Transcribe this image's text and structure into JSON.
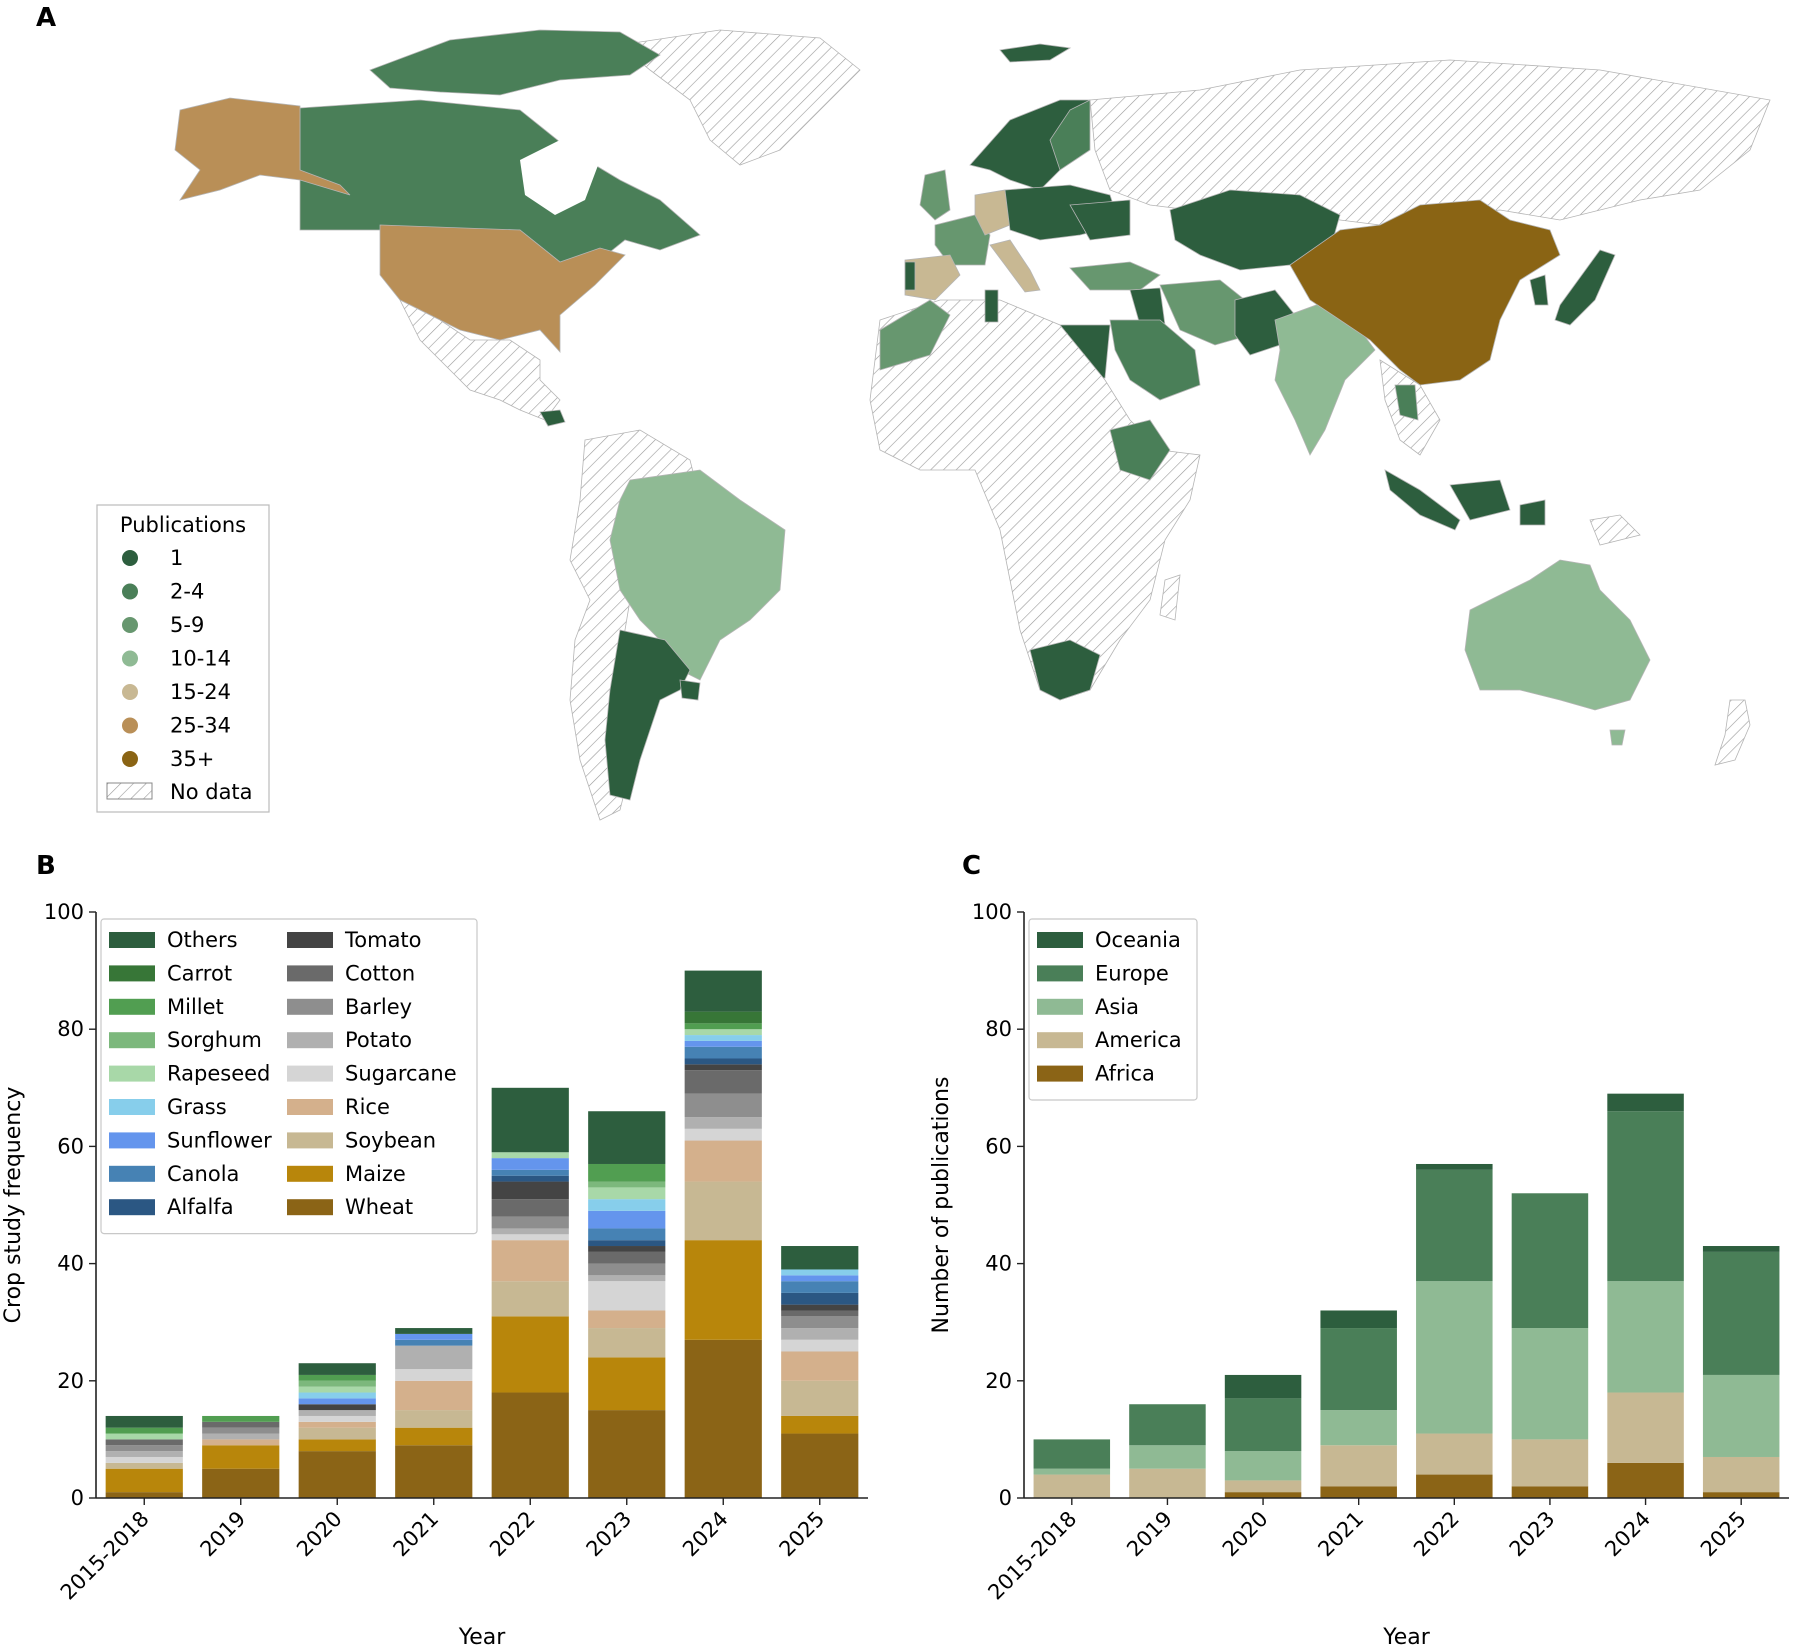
{
  "panels": {
    "a_label": "A",
    "b_label": "B",
    "c_label": "C"
  },
  "map": {
    "legend_title": "Publications",
    "legend": [
      {
        "label": "1",
        "color": "#2d5e3e"
      },
      {
        "label": "2-4",
        "color": "#4a7f58"
      },
      {
        "label": "5-9",
        "color": "#67976f"
      },
      {
        "label": "10-14",
        "color": "#8fba94"
      },
      {
        "label": "15-24",
        "color": "#c8b893"
      },
      {
        "label": "25-34",
        "color": "#b98f57"
      },
      {
        "label": "35+",
        "color": "#8a6414"
      }
    ],
    "no_data_label": "No data"
  },
  "chart_data": [
    {
      "type": "bar",
      "stacked": true,
      "xlabel": "Year",
      "ylabel": "Crop study frequency",
      "ylim": [
        0,
        100
      ],
      "yticks": [
        0,
        20,
        40,
        60,
        80,
        100
      ],
      "categories": [
        "2015-2018",
        "2019",
        "2020",
        "2021",
        "2022",
        "2023",
        "2024",
        "2025"
      ],
      "legend_placement": "top-left",
      "series": [
        {
          "name": "Wheat",
          "color": "#8b6416",
          "values": [
            1,
            5,
            8,
            9,
            18,
            15,
            27,
            11
          ]
        },
        {
          "name": "Maize",
          "color": "#b8860b",
          "values": [
            4,
            4,
            2,
            3,
            13,
            9,
            17,
            3
          ]
        },
        {
          "name": "Soybean",
          "color": "#c7b893",
          "values": [
            1,
            0,
            2,
            3,
            6,
            5,
            10,
            6
          ]
        },
        {
          "name": "Rice",
          "color": "#d4b08c",
          "values": [
            0,
            1,
            1,
            5,
            7,
            3,
            7,
            5
          ]
        },
        {
          "name": "Sugarcane",
          "color": "#d5d5d5",
          "values": [
            1,
            0,
            1,
            2,
            1,
            5,
            2,
            2
          ]
        },
        {
          "name": "Potato",
          "color": "#b0b0b0",
          "values": [
            1,
            1,
            1,
            4,
            1,
            1,
            2,
            2
          ]
        },
        {
          "name": "Barley",
          "color": "#8e8e8e",
          "values": [
            1,
            1,
            0,
            0,
            2,
            2,
            4,
            2
          ]
        },
        {
          "name": "Cotton",
          "color": "#6a6a6a",
          "values": [
            1,
            1,
            0,
            0,
            3,
            2,
            4,
            1
          ]
        },
        {
          "name": "Tomato",
          "color": "#444444",
          "values": [
            0,
            0,
            1,
            0,
            3,
            1,
            1,
            1
          ]
        },
        {
          "name": "Alfalfa",
          "color": "#2b5783",
          "values": [
            0,
            0,
            0,
            0,
            1,
            1,
            1,
            2
          ]
        },
        {
          "name": "Canola",
          "color": "#4682b4",
          "values": [
            0,
            0,
            0,
            1,
            1,
            2,
            2,
            2
          ]
        },
        {
          "name": "Sunflower",
          "color": "#6495ed",
          "values": [
            0,
            0,
            1,
            1,
            2,
            3,
            1,
            1
          ]
        },
        {
          "name": "Grass",
          "color": "#87ceeb",
          "values": [
            0,
            0,
            1,
            0,
            0,
            2,
            1,
            1
          ]
        },
        {
          "name": "Rapeseed",
          "color": "#a8d8a8",
          "values": [
            1,
            0,
            1,
            0,
            1,
            2,
            1,
            0
          ]
        },
        {
          "name": "Sorghum",
          "color": "#7cb87c",
          "values": [
            0,
            0,
            1,
            0,
            0,
            1,
            0,
            0
          ]
        },
        {
          "name": "Millet",
          "color": "#519e51",
          "values": [
            1,
            1,
            1,
            0,
            0,
            3,
            1,
            0
          ]
        },
        {
          "name": "Carrot",
          "color": "#377637",
          "values": [
            0,
            0,
            0,
            0,
            0,
            0,
            2,
            0
          ]
        },
        {
          "name": "Others",
          "color": "#2d5e3e",
          "values": [
            2,
            0,
            2,
            1,
            11,
            9,
            7,
            4
          ]
        }
      ],
      "legend_columns": [
        [
          "Others",
          "Carrot",
          "Millet",
          "Sorghum",
          "Rapeseed",
          "Grass",
          "Sunflower",
          "Canola",
          "Alfalfa"
        ],
        [
          "Tomato",
          "Cotton",
          "Barley",
          "Potato",
          "Sugarcane",
          "Rice",
          "Soybean",
          "Maize",
          "Wheat"
        ]
      ]
    },
    {
      "type": "bar",
      "stacked": true,
      "xlabel": "Year",
      "ylabel": "Number of publications",
      "ylim": [
        0,
        100
      ],
      "yticks": [
        0,
        20,
        40,
        60,
        80,
        100
      ],
      "categories": [
        "2015-2018",
        "2019",
        "2020",
        "2021",
        "2022",
        "2023",
        "2024",
        "2025"
      ],
      "legend_placement": "top-left",
      "series": [
        {
          "name": "Africa",
          "color": "#8b6416",
          "values": [
            0,
            0,
            1,
            2,
            4,
            2,
            6,
            1
          ]
        },
        {
          "name": "America",
          "color": "#c7b893",
          "values": [
            4,
            5,
            2,
            7,
            7,
            8,
            12,
            6
          ]
        },
        {
          "name": "Asia",
          "color": "#8fba94",
          "values": [
            1,
            4,
            5,
            6,
            26,
            19,
            19,
            14
          ]
        },
        {
          "name": "Europe",
          "color": "#4a7f58",
          "values": [
            5,
            7,
            9,
            14,
            19,
            23,
            29,
            21
          ]
        },
        {
          "name": "Oceania",
          "color": "#2d5e3e",
          "values": [
            0,
            0,
            4,
            3,
            1,
            0,
            3,
            1
          ]
        }
      ],
      "legend_columns": [
        [
          "Oceania",
          "Europe",
          "Asia",
          "America",
          "Africa"
        ]
      ]
    }
  ]
}
